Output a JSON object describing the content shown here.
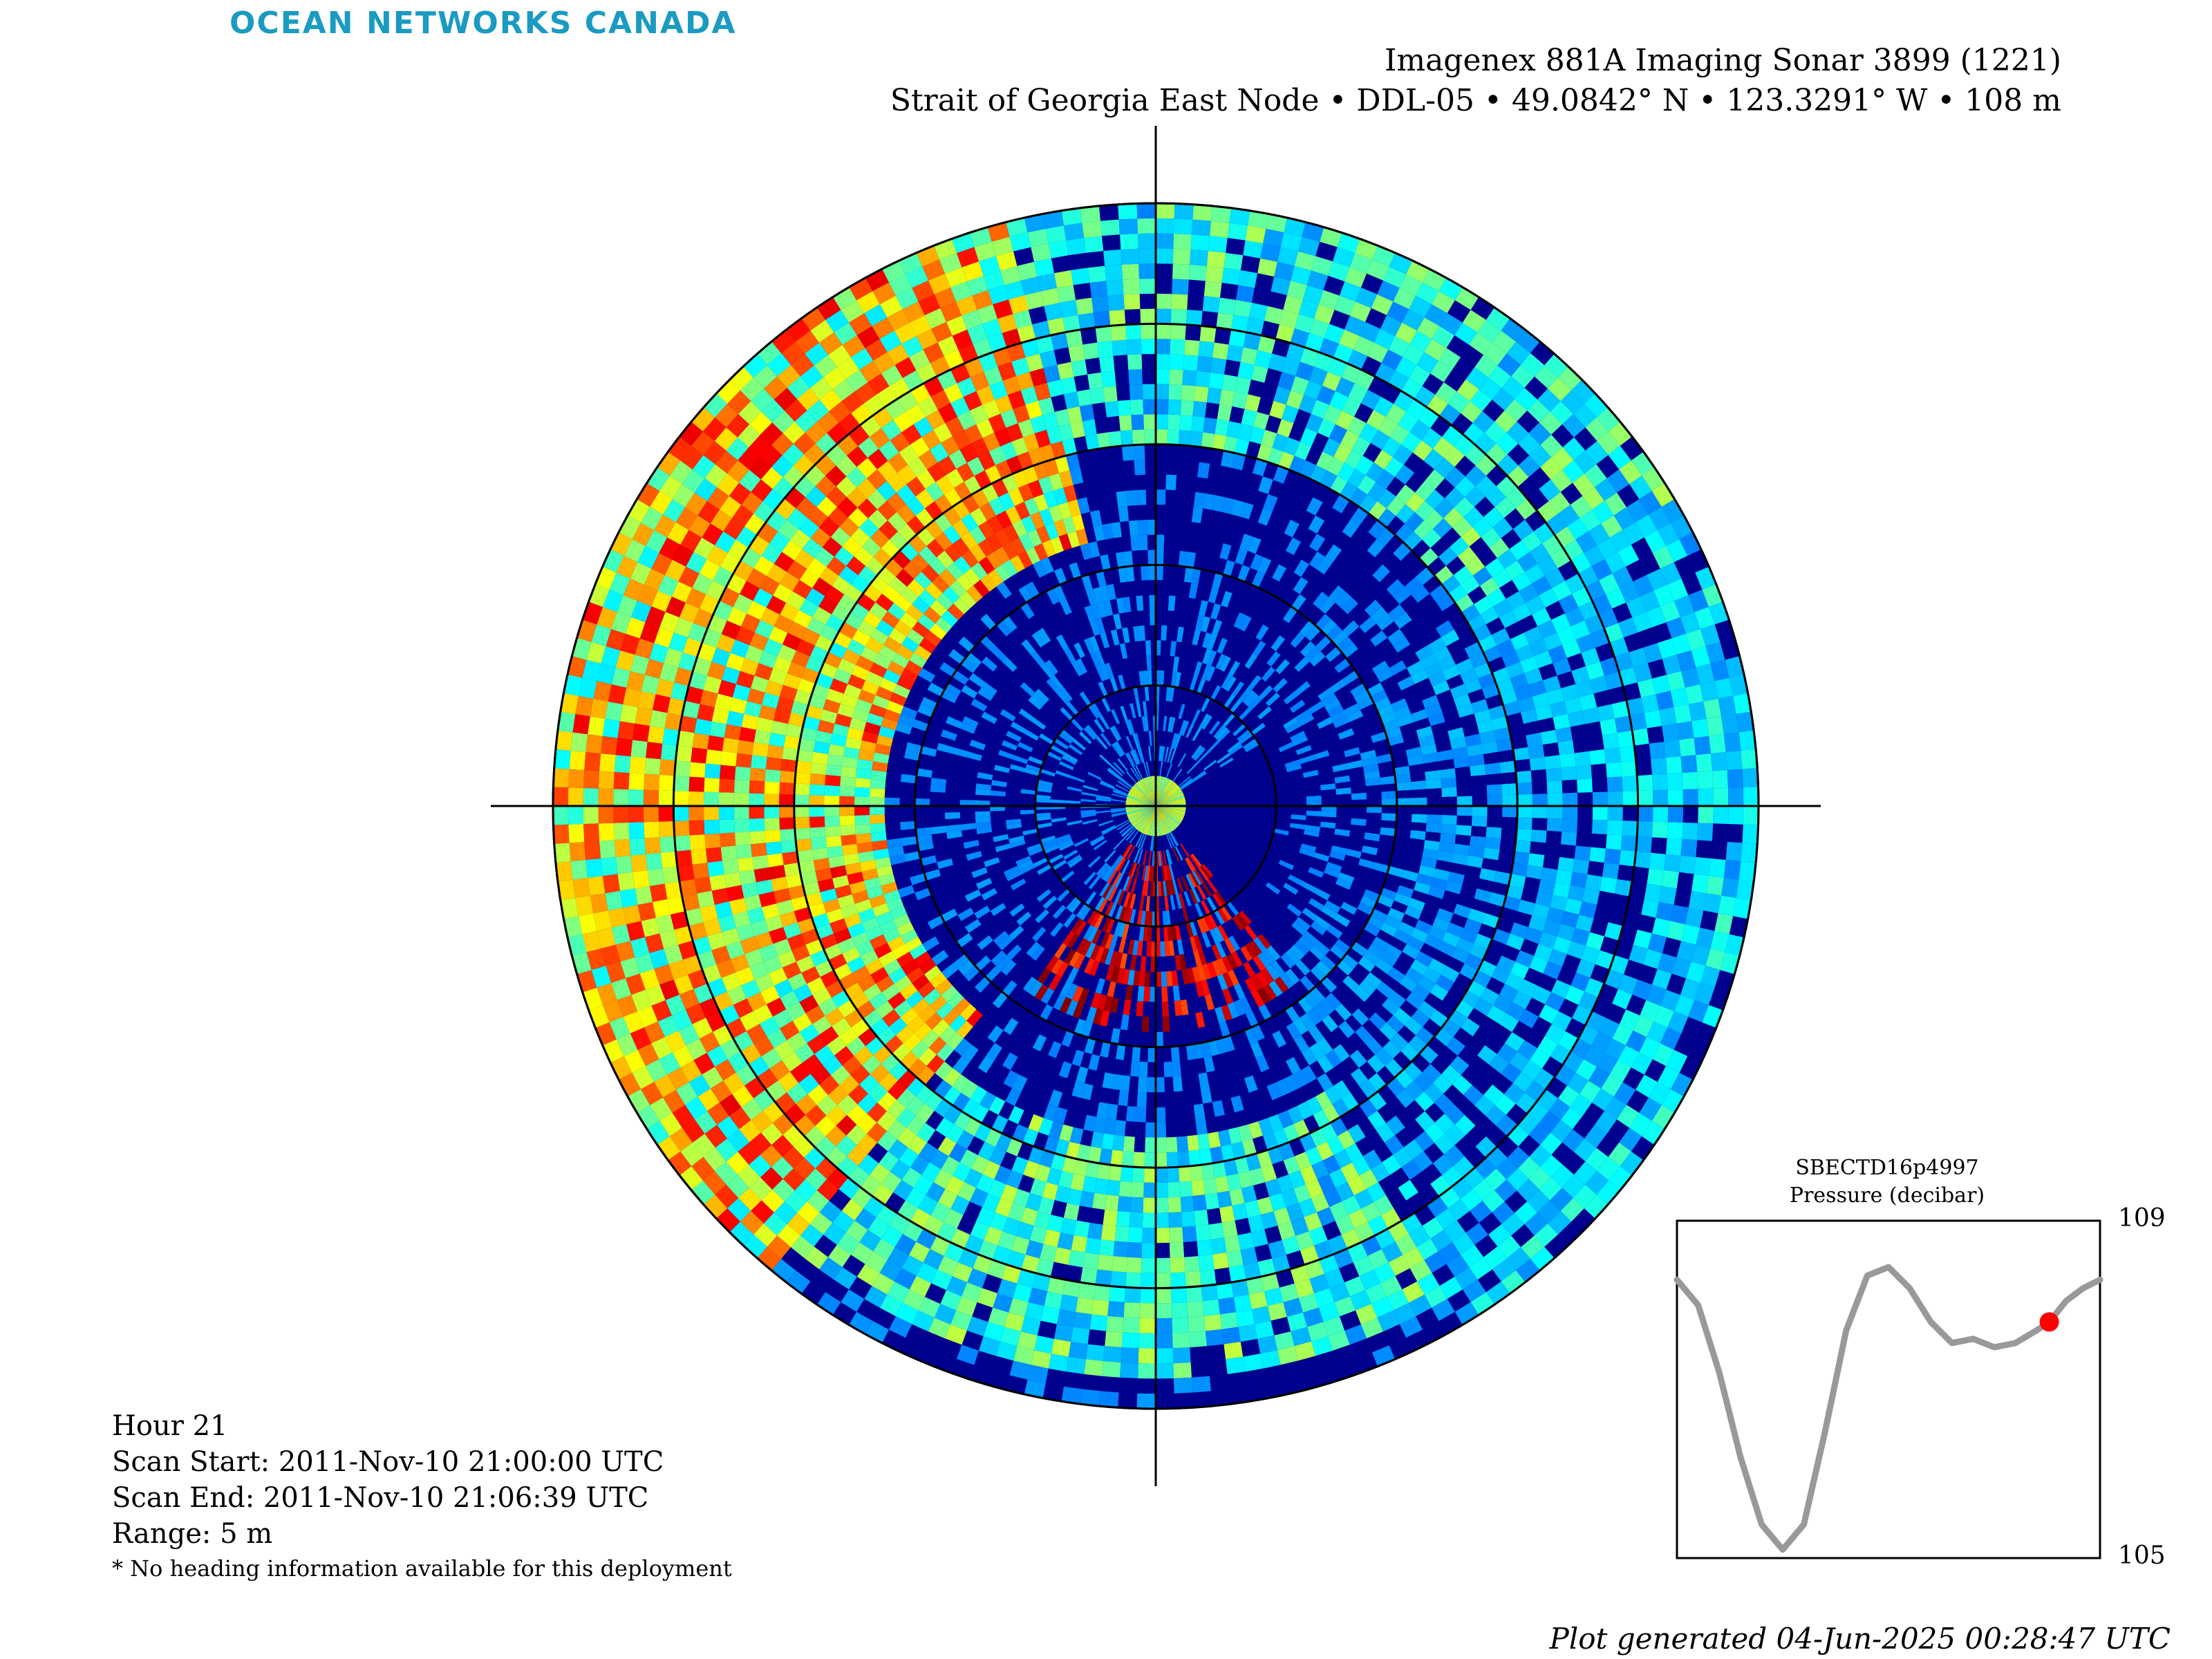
{
  "header": {
    "logo_text": "OCEAN NETWORKS CANADA",
    "title_line1": "Imagenex 881A Imaging Sonar 3899 (1221)",
    "title_line2": "Strait of Georgia East Node • DDL-05 • 49.0842° N • 123.3291° W • 108 m"
  },
  "info": {
    "hour": "Hour 21",
    "scan_start": "Scan Start: 2011-Nov-10 21:00:00 UTC",
    "scan_end": "Scan End: 2011-Nov-10 21:06:39 UTC",
    "range": "Range: 5 m",
    "note": "* No heading information available for this deployment"
  },
  "footer": {
    "generated": "Plot generated 04-Jun-2025 00:28:47 UTC"
  },
  "chart_data": [
    {
      "type": "heatmap",
      "name": "polar sonar intensity image",
      "projection": "polar",
      "colormap": "jet",
      "range_m": 5,
      "range_rings": 5,
      "grid": true,
      "colors": {
        "background": "#00008f",
        "high": "#800000"
      }
    },
    {
      "type": "line",
      "title": "SBECTD16p4997",
      "ylabel": "Pressure (decibar)",
      "ylim": [
        105,
        109
      ],
      "y_ticks": [
        "109",
        "105"
      ],
      "x": [
        0,
        0.05,
        0.1,
        0.15,
        0.2,
        0.25,
        0.3,
        0.35,
        0.4,
        0.45,
        0.5,
        0.55,
        0.6,
        0.65,
        0.7,
        0.75,
        0.8,
        0.85,
        0.88,
        0.92,
        0.96,
        1.0
      ],
      "values": [
        108.3,
        108.0,
        107.2,
        106.2,
        105.4,
        105.1,
        105.4,
        106.5,
        107.7,
        108.35,
        108.45,
        108.2,
        107.8,
        107.55,
        107.6,
        107.5,
        107.55,
        107.7,
        107.8,
        108.05,
        108.2,
        108.3
      ],
      "marker": {
        "x": 0.88,
        "y": 107.8
      },
      "colors": {
        "line": "#999999",
        "marker": "#ff0000"
      }
    }
  ]
}
